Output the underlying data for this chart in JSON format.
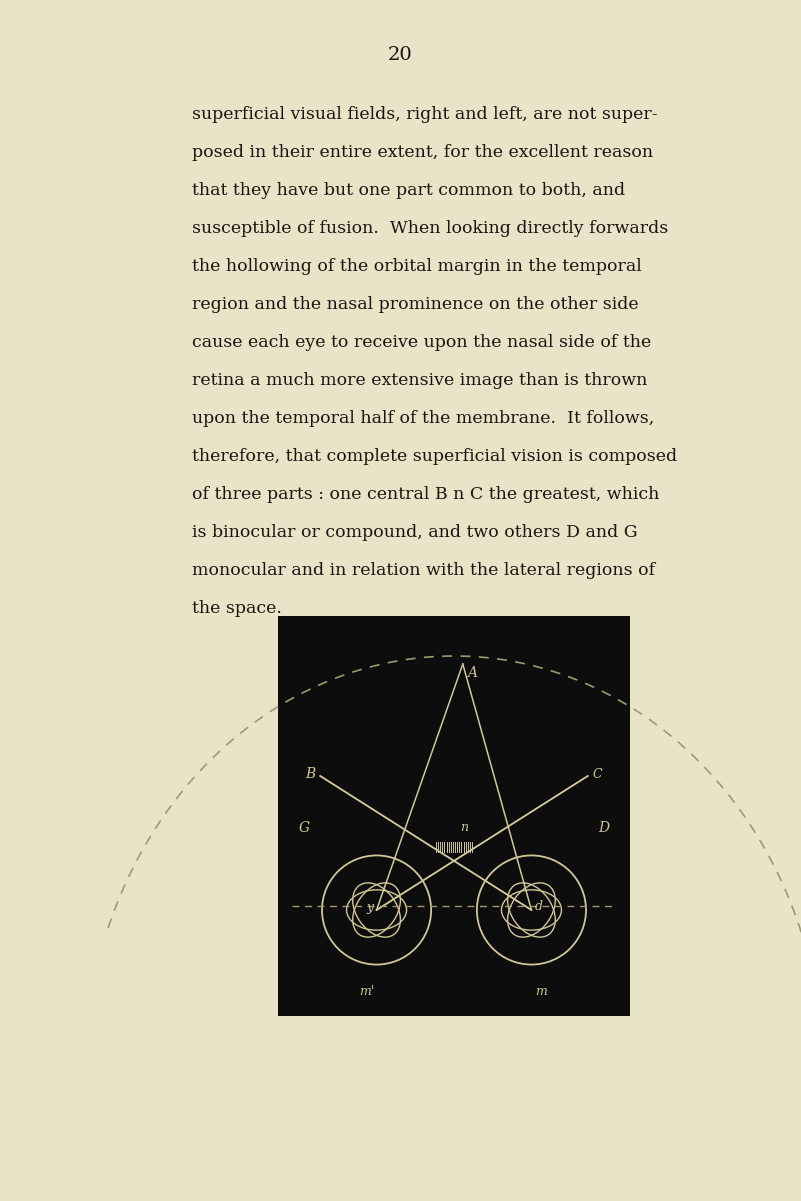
{
  "page_bg": "#e8e4c8",
  "diagram_bg": "#0d0d0d",
  "line_color": "#d0c898",
  "dashed_color": "#a09870",
  "text_color": "#1a1510",
  "page_number": "20",
  "text_lines": [
    "superficial visual fields, right and left, are not super-",
    "posed in their entire extent, for the excellent reason",
    "that they have but one part common to both, and",
    "susceptible of fusion.  When looking directly forwards",
    "the hollowing of the orbital margin in the temporal",
    "region and the nasal prominence on the other side",
    "cause each eye to receive upon the nasal side of the",
    "retina a much more extensive image than is thrown",
    "upon the temporal half of the membrane.  It follows,",
    "therefore, that complete superficial vision is composed",
    "of three parts : one central B n C the greatest, which",
    "is binocular or compound, and two others D and G",
    "monocular and in relation with the lateral regions of",
    "the space."
  ]
}
